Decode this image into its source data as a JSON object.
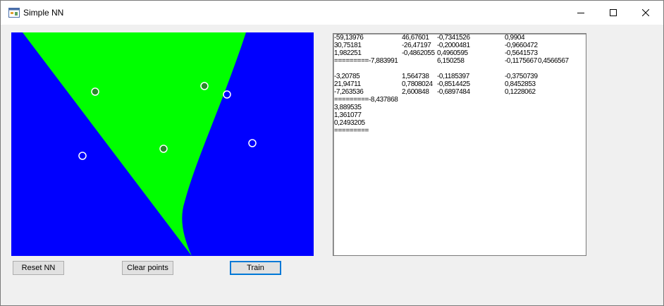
{
  "window": {
    "title": "Simple NN",
    "icon": "app-form-icon",
    "controls": [
      "minimize-icon",
      "maximize-icon",
      "close-icon"
    ]
  },
  "colors": {
    "region_a": "#0000ff",
    "region_b": "#00ff00",
    "point_class_b_fill": "#2a8a2a",
    "point_class_a_fill": "#0000ff",
    "point_stroke": "#ffffff"
  },
  "points": [
    {
      "class": "b"
    },
    {
      "class": "b"
    },
    {
      "class": "b"
    },
    {
      "class": "a"
    },
    {
      "class": "a"
    },
    {
      "class": "a"
    }
  ],
  "output": {
    "lines": [
      [
        "-59,13976",
        "46,67601",
        "-0,7341526",
        "0,9904",
        ""
      ],
      [
        "30,75181",
        "-26,47197",
        "-0,2000481",
        "-0,9660472",
        ""
      ],
      [
        "1,982251",
        "-0,4862055",
        "0,4960595",
        "-0,5641573",
        ""
      ],
      [
        "=========-7,883991",
        "",
        "6,150258",
        "-0,1175667",
        "0,4566567"
      ],
      [
        "",
        "",
        "",
        "",
        ""
      ],
      [
        "-3,20785",
        "1,564738",
        "-0,1185397",
        "-0,3750739",
        ""
      ],
      [
        "21,94711",
        "0,7808024",
        "-0,8514425",
        "0,8452853",
        ""
      ],
      [
        "-7,263536",
        "2,600848",
        "-0,6897484",
        "0,1228062",
        ""
      ],
      [
        "=========-8,437868",
        "",
        "",
        "",
        ""
      ],
      [
        "3,889535",
        "",
        "",
        "",
        ""
      ],
      [
        "1,361077",
        "",
        "",
        "",
        ""
      ],
      [
        "0,2493205",
        "",
        "",
        "",
        ""
      ],
      [
        "=========",
        "",
        "",
        "",
        ""
      ]
    ]
  },
  "buttons": {
    "reset": "Reset NN",
    "clear": "Clear points",
    "train": "Train"
  }
}
